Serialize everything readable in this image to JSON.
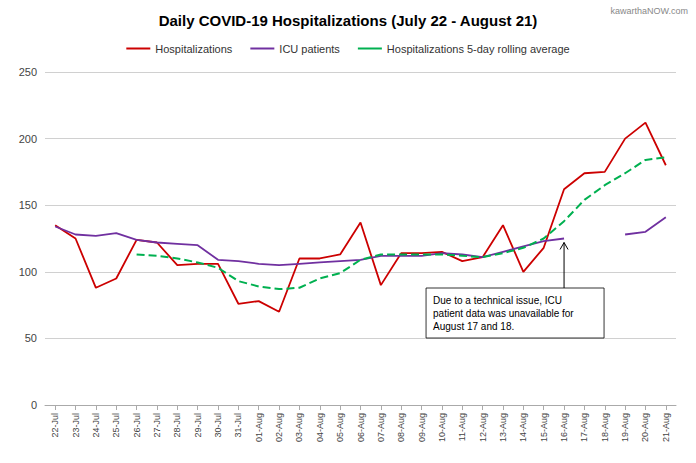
{
  "chart_data": {
    "type": "line",
    "title": "Daily COVID-19 Hospitalizations (July 22 - August 21)",
    "watermark": "kawarthaNOW.com",
    "categories": [
      "22-Jul",
      "23-Jul",
      "24-Jul",
      "25-Jul",
      "26-Jul",
      "27-Jul",
      "28-Jul",
      "29-Jul",
      "30-Jul",
      "31-Jul",
      "01-Aug",
      "02-Aug",
      "03-Aug",
      "04-Aug",
      "05-Aug",
      "06-Aug",
      "07-Aug",
      "08-Aug",
      "09-Aug",
      "10-Aug",
      "11-Aug",
      "12-Aug",
      "13-Aug",
      "14-Aug",
      "15-Aug",
      "16-Aug",
      "17-Aug",
      "18-Aug",
      "19-Aug",
      "20-Aug",
      "21-Aug"
    ],
    "series": [
      {
        "name": "Hospitalizations",
        "color": "#cc0000",
        "line_style": "solid",
        "values": [
          135,
          125,
          88,
          95,
          124,
          122,
          105,
          106,
          106,
          76,
          78,
          70,
          110,
          110,
          113,
          137,
          90,
          114,
          114,
          115,
          108,
          111,
          135,
          100,
          118,
          162,
          174,
          175,
          200,
          212,
          180
        ]
      },
      {
        "name": "ICU patients",
        "color": "#7030a0",
        "line_style": "solid",
        "values": [
          134,
          128,
          127,
          129,
          124,
          122,
          121,
          120,
          109,
          108,
          106,
          105,
          106,
          107,
          108,
          109,
          112,
          112,
          112,
          114,
          113,
          111,
          115,
          119,
          123,
          125,
          null,
          null,
          128,
          130,
          141
        ]
      },
      {
        "name": "Hospitalizations 5-day rolling average",
        "color": "#00b050",
        "line_style": "dashed",
        "values": [
          null,
          null,
          null,
          null,
          113,
          112,
          110,
          107,
          103,
          93,
          89,
          87,
          88,
          95,
          99,
          109,
          113,
          113,
          113,
          113,
          112,
          111,
          114,
          118,
          125,
          138,
          154,
          165,
          174,
          184,
          186
        ]
      }
    ],
    "ylim": [
      0,
      250
    ],
    "yticks": [
      0,
      50,
      100,
      150,
      200,
      250
    ],
    "grid": true,
    "legend": "top",
    "annotations": [
      {
        "text": "Due to a technical issue, ICU\npatient data was unavailable for\nAugust 17 and 18."
      }
    ]
  }
}
